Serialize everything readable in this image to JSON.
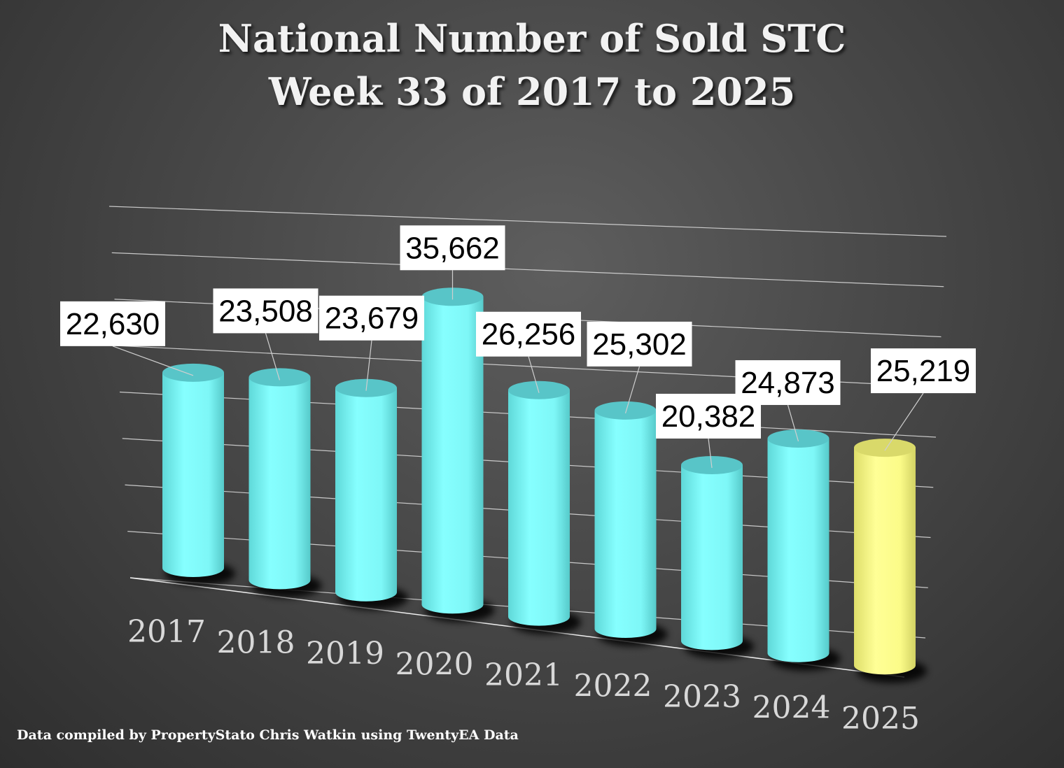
{
  "header": {
    "title_line1": "National Number of  Sold STC",
    "title_line2": "Week 33 of 2017 to 2025"
  },
  "footer": {
    "source": "Data compiled by PropertyStato Chris Watkin using TwentyEA Data"
  },
  "colors": {
    "bar": "#7ef7f7",
    "highlight_bar": "#fbfb88",
    "label_bg": "#ffffff",
    "category_text": "#d8d8d8"
  },
  "chart_data": {
    "type": "bar",
    "style": "3d-cylinder",
    "categories": [
      "2017",
      "2018",
      "2019",
      "2020",
      "2021",
      "2022",
      "2023",
      "2024",
      "2025"
    ],
    "values": [
      22630,
      23508,
      23679,
      35662,
      26256,
      25302,
      20382,
      24873,
      25219
    ],
    "data_labels": [
      "22,630",
      "23,508",
      "23,679",
      "35,662",
      "26,256",
      "25,302",
      "20,382",
      "24,873",
      "25,219"
    ],
    "highlight_category": "2025",
    "title": "National Number of  Sold STC Week 33 of 2017 to 2025",
    "xlabel": "",
    "ylabel": "",
    "ylim": [
      0,
      40000
    ],
    "grid": true,
    "legend": "none"
  }
}
